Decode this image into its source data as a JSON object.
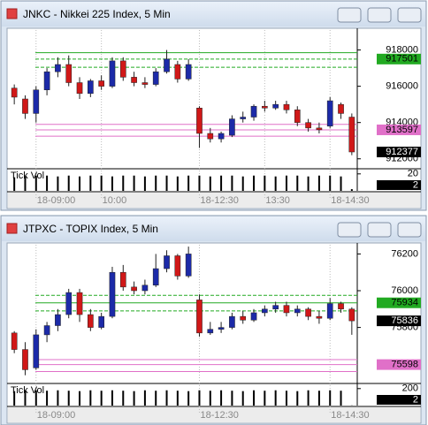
{
  "chart_data": [
    {
      "type": "candlestick",
      "title": "JNKC - Nikkei 225 Index, 5 Min",
      "categories": [
        null,
        null,
        "18-09:00",
        null,
        null,
        null,
        null,
        null,
        "10:00",
        null,
        null,
        null,
        null,
        null,
        null,
        null,
        null,
        "18-12:30",
        null,
        null,
        null,
        null,
        null,
        "13:30",
        null,
        null,
        null,
        null,
        null,
        "18-14:30",
        null,
        null
      ],
      "open": [
        915900,
        915300,
        914500,
        915800,
        916800,
        917200,
        916200,
        915600,
        916300,
        916000,
        917400,
        916500,
        916200,
        916100,
        916800,
        917200,
        916400,
        914800,
        913400,
        913100,
        913300,
        914200,
        914300,
        914900,
        914800,
        915000,
        914700,
        914000,
        913700,
        913800,
        915000,
        914300
      ],
      "high": [
        916100,
        915500,
        916000,
        917000,
        917600,
        917700,
        916500,
        916400,
        916600,
        917600,
        917600,
        916800,
        916500,
        917000,
        918000,
        917400,
        917500,
        914900,
        913700,
        913500,
        914400,
        914600,
        915000,
        915200,
        915200,
        915200,
        914900,
        914200,
        914000,
        915400,
        915100,
        914500
      ],
      "low": [
        915000,
        914200,
        914000,
        915500,
        916500,
        916000,
        915300,
        915400,
        915800,
        915900,
        916300,
        916000,
        915900,
        916000,
        916700,
        916200,
        916300,
        912600,
        912900,
        912900,
        913200,
        914000,
        914100,
        914600,
        914700,
        914500,
        913800,
        913500,
        913400,
        913700,
        914200,
        912200
      ],
      "close": [
        915400,
        914500,
        915800,
        916800,
        917200,
        916200,
        915600,
        916300,
        916000,
        917400,
        916500,
        916200,
        916100,
        916800,
        917500,
        916400,
        917200,
        913400,
        913100,
        913400,
        914200,
        914300,
        914900,
        914800,
        915000,
        914700,
        914000,
        913700,
        913600,
        915200,
        914500,
        912377
      ],
      "up_color": "#1c2aa8",
      "down_color": "#d01818",
      "ylim": [
        911500,
        919100
      ],
      "yticks": [
        912000,
        914000,
        916000,
        918000
      ],
      "levels": [
        {
          "value": 917850,
          "color": "#22aa22",
          "dashed": false,
          "tagged": false
        },
        {
          "value": 917501,
          "color": "#22aa22",
          "dashed": true,
          "tagged": true
        },
        {
          "value": 917050,
          "color": "#22aa22",
          "dashed": true,
          "tagged": false
        },
        {
          "value": 913900,
          "color": "#e070c8",
          "dashed": false,
          "tagged": false
        },
        {
          "value": 913597,
          "color": "#e070c8",
          "dashed": false,
          "tagged": true
        },
        {
          "value": 913250,
          "color": "#e070c8",
          "dashed": false,
          "tagged": false
        }
      ],
      "volume": {
        "label": "Tick Vol",
        "ylim": [
          0,
          25
        ],
        "yticks": [
          20
        ],
        "values": [
          16,
          17,
          18,
          18,
          17,
          18,
          17,
          18,
          18,
          17,
          18,
          18,
          17,
          18,
          18,
          17,
          18,
          18,
          17,
          18,
          18,
          17,
          18,
          18,
          17,
          18,
          18,
          17,
          18,
          18,
          17,
          2
        ]
      }
    },
    {
      "type": "candlestick",
      "title": "JTPXC - TOPIX Index, 5 Min",
      "categories": [
        null,
        null,
        "18-09:00",
        null,
        null,
        null,
        null,
        null,
        null,
        null,
        null,
        null,
        null,
        null,
        null,
        null,
        null,
        "18-12:30",
        null,
        null,
        null,
        null,
        null,
        null,
        null,
        null,
        null,
        null,
        null,
        "18-14:30",
        null,
        null
      ],
      "open": [
        75770,
        75680,
        75580,
        75760,
        75810,
        75870,
        75990,
        75870,
        75800,
        75860,
        76100,
        76020,
        76000,
        76030,
        76120,
        76190,
        76080,
        75950,
        75770,
        75790,
        75800,
        75860,
        75840,
        75880,
        75900,
        75920,
        75880,
        75900,
        75860,
        75850,
        75930,
        75900
      ],
      "high": [
        75780,
        75720,
        75790,
        75830,
        75900,
        76010,
        76010,
        75900,
        75880,
        76130,
        76140,
        76050,
        76060,
        76200,
        76220,
        76200,
        76240,
        75980,
        75830,
        75830,
        75880,
        75890,
        75900,
        75920,
        75940,
        75940,
        75920,
        75910,
        75890,
        75960,
        75940,
        75910
      ],
      "low": [
        75660,
        75540,
        75570,
        75720,
        75780,
        75850,
        75830,
        75780,
        75790,
        75850,
        76000,
        75980,
        75980,
        76020,
        76100,
        76060,
        76070,
        75750,
        75760,
        75770,
        75790,
        75820,
        75830,
        75860,
        75880,
        75860,
        75860,
        75840,
        75820,
        75840,
        75880,
        75760
      ],
      "close": [
        75680,
        75570,
        75760,
        75810,
        75870,
        75990,
        75870,
        75800,
        75860,
        76100,
        76020,
        76000,
        76030,
        76120,
        76190,
        76080,
        76200,
        75770,
        75790,
        75800,
        75860,
        75840,
        75880,
        75900,
        75920,
        75880,
        75900,
        75860,
        75850,
        75930,
        75900,
        75836
      ],
      "up_color": "#1c2aa8",
      "down_color": "#d01818",
      "ylim": [
        75500,
        76250
      ],
      "yticks": [
        75800,
        76000,
        76200
      ],
      "levels": [
        {
          "value": 75975,
          "color": "#22aa22",
          "dashed": true,
          "tagged": false
        },
        {
          "value": 75934,
          "color": "#22aa22",
          "dashed": false,
          "tagged": true
        },
        {
          "value": 75890,
          "color": "#22aa22",
          "dashed": true,
          "tagged": false
        },
        {
          "value": 75625,
          "color": "#e070c8",
          "dashed": false,
          "tagged": false
        },
        {
          "value": 75598,
          "color": "#e070c8",
          "dashed": false,
          "tagged": true
        },
        {
          "value": 75560,
          "color": "#e070c8",
          "dashed": false,
          "tagged": false
        }
      ],
      "volume": {
        "label": "Tick Vol",
        "ylim": [
          0,
          250
        ],
        "yticks": [
          200
        ],
        "values": [
          170,
          175,
          180,
          175,
          180,
          175,
          170,
          180,
          175,
          180,
          175,
          170,
          180,
          175,
          180,
          175,
          170,
          180,
          175,
          180,
          175,
          170,
          180,
          175,
          180,
          175,
          170,
          180,
          175,
          180,
          175,
          2
        ]
      }
    }
  ]
}
